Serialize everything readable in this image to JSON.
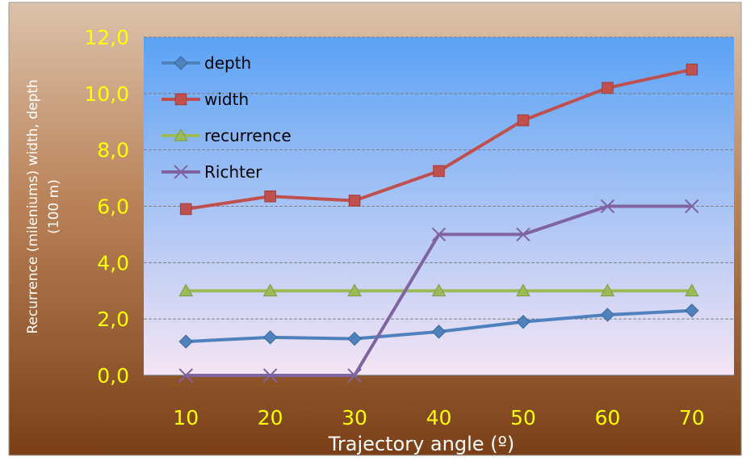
{
  "chart_data": {
    "type": "line",
    "categories": [
      "10",
      "20",
      "30",
      "40",
      "50",
      "60",
      "70"
    ],
    "series": [
      {
        "name": "depth",
        "values": [
          1.2,
          1.35,
          1.3,
          1.55,
          1.9,
          2.15,
          2.3
        ],
        "color": "#4f81bd",
        "marker": "diamond"
      },
      {
        "name": "width",
        "values": [
          5.9,
          6.35,
          6.2,
          7.25,
          9.05,
          10.2,
          10.85
        ],
        "color": "#c0504d",
        "marker": "square"
      },
      {
        "name": "recurrence",
        "values": [
          3.0,
          3.0,
          3.0,
          3.0,
          3.0,
          3.0,
          3.0
        ],
        "color": "#9bbb59",
        "marker": "triangle"
      },
      {
        "name": "Richter",
        "values": [
          0,
          0,
          0,
          5,
          5,
          6,
          6
        ],
        "color": "#8064a2",
        "marker": "x"
      }
    ],
    "xlabel": "Trajectory angle (º)",
    "ylabel": "Recurrence (mileniums) width, depth (100 m)",
    "ylim": [
      0,
      12
    ],
    "yticks": [
      "0,0",
      "2,0",
      "4,0",
      "6,0",
      "8,0",
      "10,0",
      "12,0"
    ],
    "grid": true,
    "legend_position": "top-left",
    "colors": {
      "tick_label": "#ffff00",
      "axis_title": "#ffffff",
      "gridline": "#808080",
      "bg_top": "#dcc2ab",
      "bg_bottom": "#7a3f16",
      "plot_top": "#5ba2f5",
      "plot_bottom": "#f5e5f5"
    }
  }
}
